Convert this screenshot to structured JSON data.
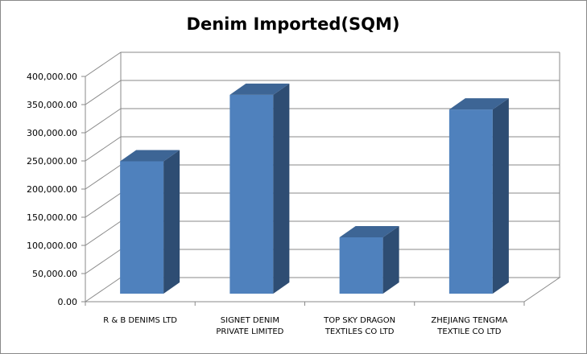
{
  "chart_data": {
    "type": "bar",
    "title": "Denim Imported(SQM)",
    "xlabel": "",
    "ylabel": "",
    "categories": [
      [
        "R & B DENIMS  LTD"
      ],
      [
        "SIGNET  DENIM",
        "PRIVATE LIMITED"
      ],
      [
        "TOP SKY DRAGON",
        "TEXTILES CO LTD"
      ],
      [
        "ZHEJIANG TENGMA",
        "TEXTILE CO LTD"
      ]
    ],
    "values": [
      235000,
      353000,
      100000,
      327000
    ],
    "ylim": [
      0,
      400000
    ],
    "yticks": [
      "0.00",
      "50,000.00",
      "100,000.00",
      "150,000.00",
      "200,000.00",
      "250,000.00",
      "300,000.00",
      "350,000.00",
      "400,000.00"
    ],
    "grid": true,
    "legend": "none",
    "bar_colors": {
      "front": "#4f81bd",
      "side": "#2e4d73",
      "top": "#3d6595"
    },
    "grid_color": "#8a8a8a"
  }
}
